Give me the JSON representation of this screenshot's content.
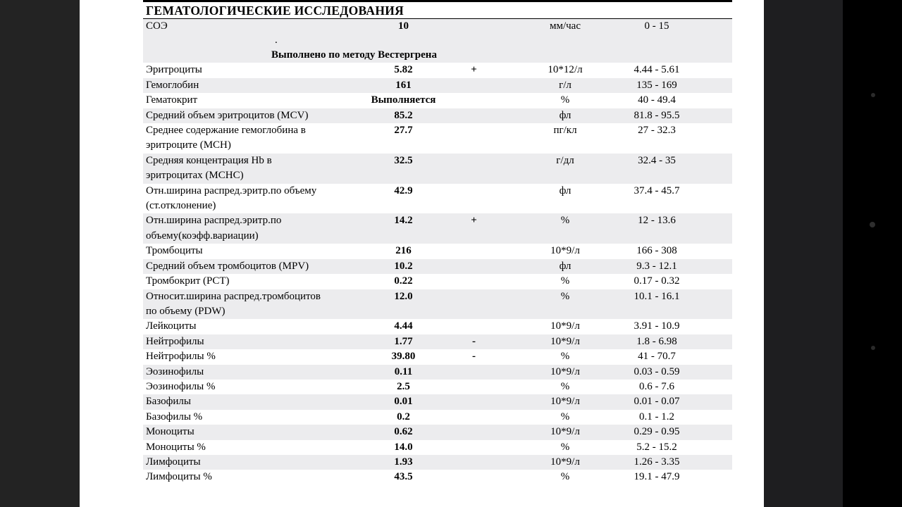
{
  "colors": {
    "stripe": "#ececee",
    "left_panel": "#232323",
    "right_panel": "#1e1e20",
    "right_edge": "#000000",
    "page": "#ffffff"
  },
  "report": {
    "title": "ГЕМАТОЛОГИЧЕСКИЕ ИССЛЕДОВАНИЯ",
    "soe": {
      "name": "СОЭ",
      "value": "10",
      "flag": "",
      "unit": "мм/час",
      "range": "0 - 15",
      "dot": ".",
      "method_note": "Выполнено по методу Вестергрена"
    },
    "rows": [
      {
        "name": "Эритроциты",
        "value": "5.82",
        "flag": "+",
        "unit": "10*12/л",
        "range": "4.44 - 5.61",
        "shaded": false
      },
      {
        "name": "Гемоглобин",
        "value": "161",
        "flag": "",
        "unit": "г/л",
        "range": "135 - 169",
        "shaded": true
      },
      {
        "name": "Гематокрит",
        "value": "Выполняется",
        "flag": "",
        "unit": "%",
        "range": "40 - 49.4",
        "shaded": false
      },
      {
        "name": "Средний объем эритроцитов (MCV)",
        "value": "85.2",
        "flag": "",
        "unit": "фл",
        "range": "81.8 - 95.5",
        "shaded": true
      },
      {
        "name": "Среднее содержание гемоглобина в\nэритроците (MCH)",
        "value": "27.7",
        "flag": "",
        "unit": "пг/кл",
        "range": "27 - 32.3",
        "shaded": false
      },
      {
        "name": "Средняя концентрация Hb в\nэритроцитах (MCHC)",
        "value": "32.5",
        "flag": "",
        "unit": "г/дл",
        "range": "32.4 - 35",
        "shaded": true
      },
      {
        "name": "Отн.ширина распред.эритр.по объему\n(ст.отклонение)",
        "value": "42.9",
        "flag": "",
        "unit": "фл",
        "range": "37.4 - 45.7",
        "shaded": false
      },
      {
        "name": "Отн.ширина распред.эритр.по\nобъему(коэфф.вариации)",
        "value": "14.2",
        "flag": "+",
        "unit": "%",
        "range": "12 - 13.6",
        "shaded": true
      },
      {
        "name": "Тромбоциты",
        "value": "216",
        "flag": "",
        "unit": "10*9/л",
        "range": "166 - 308",
        "shaded": false
      },
      {
        "name": "Средний объем тромбоцитов (MPV)",
        "value": "10.2",
        "flag": "",
        "unit": "фл",
        "range": "9.3 - 12.1",
        "shaded": true
      },
      {
        "name": "Тромбокрит (PCT)",
        "value": "0.22",
        "flag": "",
        "unit": "%",
        "range": "0.17 - 0.32",
        "shaded": false
      },
      {
        "name": "Относит.ширина распред.тромбоцитов\nпо объему (PDW)",
        "value": "12.0",
        "flag": "",
        "unit": "%",
        "range": "10.1 - 16.1",
        "shaded": true
      },
      {
        "name": "Лейкоциты",
        "value": "4.44",
        "flag": "",
        "unit": "10*9/л",
        "range": "3.91 - 10.9",
        "shaded": false
      },
      {
        "name": "Нейтрофилы",
        "value": "1.77",
        "flag": "-",
        "unit": "10*9/л",
        "range": "1.8 - 6.98",
        "shaded": true
      },
      {
        "name": "Нейтрофилы %",
        "value": "39.80",
        "flag": "-",
        "unit": "%",
        "range": "41 - 70.7",
        "shaded": false
      },
      {
        "name": "Эозинофилы",
        "value": "0.11",
        "flag": "",
        "unit": "10*9/л",
        "range": "0.03 - 0.59",
        "shaded": true
      },
      {
        "name": "Эозинофилы %",
        "value": "2.5",
        "flag": "",
        "unit": "%",
        "range": "0.6 - 7.6",
        "shaded": false
      },
      {
        "name": "Базофилы",
        "value": "0.01",
        "flag": "",
        "unit": "10*9/л",
        "range": "0.01 - 0.07",
        "shaded": true
      },
      {
        "name": "Базофилы %",
        "value": "0.2",
        "flag": "",
        "unit": "%",
        "range": "0.1 - 1.2",
        "shaded": false
      },
      {
        "name": "Моноциты",
        "value": "0.62",
        "flag": "",
        "unit": "10*9/л",
        "range": "0.29 - 0.95",
        "shaded": true
      },
      {
        "name": "Моноциты %",
        "value": "14.0",
        "flag": "",
        "unit": "%",
        "range": "5.2 - 15.2",
        "shaded": false
      },
      {
        "name": "Лимфоциты",
        "value": "1.93",
        "flag": "",
        "unit": "10*9/л",
        "range": "1.26 - 3.35",
        "shaded": true
      },
      {
        "name": "Лимфоциты %",
        "value": "43.5",
        "flag": "",
        "unit": "%",
        "range": "19.1 - 47.9",
        "shaded": false
      }
    ]
  }
}
